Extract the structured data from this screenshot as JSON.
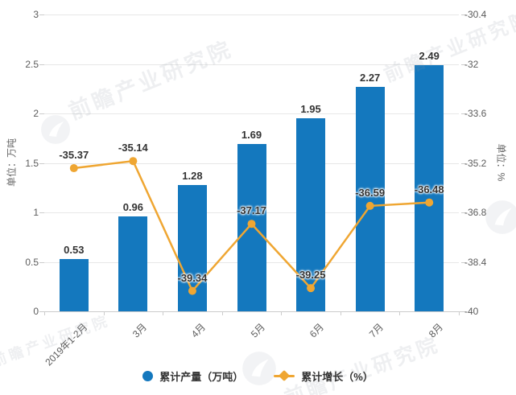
{
  "watermark": {
    "text": "前瞻产业研究院"
  },
  "chart_data": {
    "type": "bar",
    "subtype": "bar+line dual-axis combo",
    "categories": [
      "2019年1-2月",
      "3月",
      "4月",
      "5月",
      "6月",
      "7月",
      "8月"
    ],
    "series": [
      {
        "name": "累计产量（万吨）",
        "chart_type": "bar",
        "axis": "left",
        "color": "#1478be",
        "values": [
          0.53,
          0.96,
          1.28,
          1.69,
          1.95,
          2.27,
          2.49
        ]
      },
      {
        "name": "累计增长（%）",
        "chart_type": "line",
        "axis": "right",
        "color": "#efa632",
        "values": [
          -35.37,
          -35.14,
          -39.34,
          -37.17,
          -39.25,
          -36.59,
          -36.48
        ]
      }
    ],
    "title": "",
    "xlabel": "",
    "left_axis": {
      "label": "单位：万吨",
      "range": [
        0,
        3
      ],
      "ticks": [
        "3",
        "2.5",
        "2",
        "1.5",
        "1",
        "0.5",
        "0"
      ]
    },
    "right_axis": {
      "label": "单位：%",
      "range": [
        -40,
        -30.4
      ],
      "ticks": [
        "-30.4",
        "-32",
        "-33.6",
        "-35.2",
        "-36.8",
        "-38.4",
        "-40"
      ]
    },
    "grid": true,
    "legend_position": "bottom"
  }
}
